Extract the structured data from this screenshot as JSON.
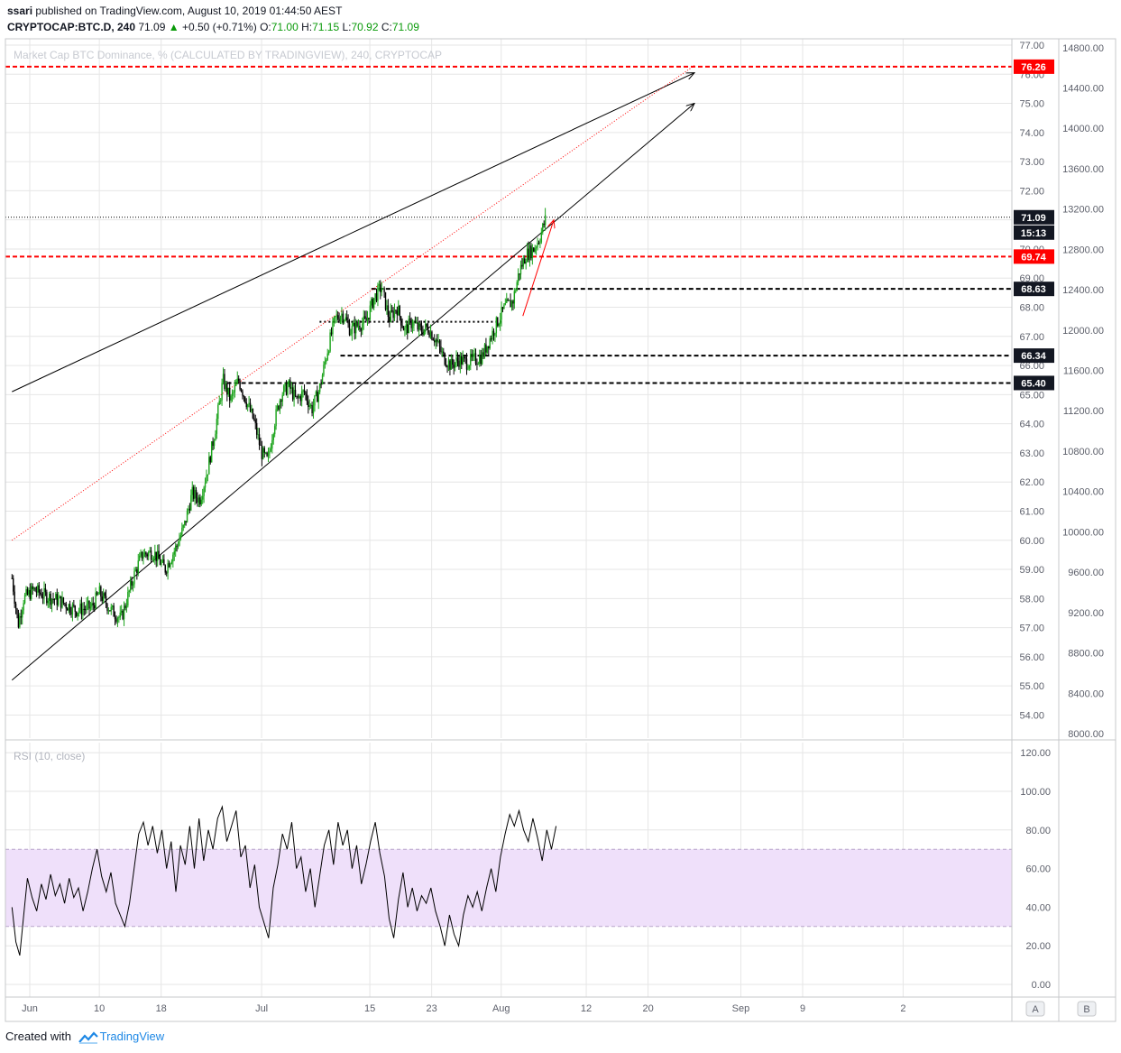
{
  "header": {
    "author": "ssari",
    "published_text": "published on TradingView.com, August 10, 2019 01:44:50 AEST",
    "symbol": "CRYPTOCAP:BTC.D, 240",
    "last": "71.09",
    "change": "+0.50 (+0.71%)",
    "o_label": "O:",
    "o_value": "71.00",
    "h_label": "H:",
    "h_value": "71.15",
    "l_label": "L:",
    "l_value": "70.92",
    "c_label": "C:",
    "c_value": "71.09"
  },
  "watermark": "Market Cap BTC Dominance, % (CALCULATED BY TRADINGVIEW), 240, CRYPTOCAP",
  "rsi_label": "RSI (10, close)",
  "footer": {
    "created_with": "Created with",
    "brand": "TradingView"
  },
  "colors": {
    "up_candle": "#1ba31b",
    "down_candle": "#000000",
    "red_level": "#ff0000",
    "rsi_band": "#efe0fa",
    "rsi_line": "#000000",
    "grid": "#e6e6e6",
    "trendline": "#000000"
  },
  "chart_data": [
    {
      "type": "candlestick",
      "title": "",
      "xlabel": "",
      "ylabel": "",
      "ylim": [
        53.5,
        77
      ],
      "y_ticks": [
        "54.00",
        "55.00",
        "56.00",
        "57.00",
        "58.00",
        "59.00",
        "60.00",
        "61.00",
        "62.00",
        "63.00",
        "64.00",
        "65.00",
        "66.00",
        "67.00",
        "68.00",
        "69.00",
        "70.00",
        "71.00",
        "72.00",
        "73.00",
        "74.00",
        "75.00",
        "76.00",
        "77.00"
      ],
      "secondary_y_ticks": [
        "8000.00",
        "8400.00",
        "8800.00",
        "9200.00",
        "9600.00",
        "10000.00",
        "10400.00",
        "10800.00",
        "11200.00",
        "11600.00",
        "12000.00",
        "12400.00",
        "12800.00",
        "13200.00",
        "13600.00",
        "14000.00",
        "14400.00",
        "14800.00"
      ],
      "x_ticks": [
        {
          "label": "Jun",
          "day": 0
        },
        {
          "label": "10",
          "day": 9
        },
        {
          "label": "18",
          "day": 17
        },
        {
          "label": "Jul",
          "day": 30
        },
        {
          "label": "15",
          "day": 44
        },
        {
          "label": "23",
          "day": 52
        },
        {
          "label": "Aug",
          "day": 61
        },
        {
          "label": "12",
          "day": 72
        },
        {
          "label": "20",
          "day": 80
        },
        {
          "label": "Sep",
          "day": 92
        },
        {
          "label": "9",
          "day": 100
        },
        {
          "label": "2",
          "day": 113
        }
      ],
      "grid": true,
      "price_path": [
        {
          "day": -2.3,
          "close": 58.7
        },
        {
          "day": -1.5,
          "close": 57.1
        },
        {
          "day": -0.8,
          "close": 58.0
        },
        {
          "day": 0.5,
          "close": 58.3
        },
        {
          "day": 2,
          "close": 58.1
        },
        {
          "day": 4,
          "close": 57.9
        },
        {
          "day": 6,
          "close": 57.6
        },
        {
          "day": 8,
          "close": 57.7
        },
        {
          "day": 9,
          "close": 58.2
        },
        {
          "day": 10.5,
          "close": 57.6
        },
        {
          "day": 11.8,
          "close": 57.3
        },
        {
          "day": 12.5,
          "close": 57.9
        },
        {
          "day": 13.5,
          "close": 58.8
        },
        {
          "day": 14.5,
          "close": 59.5
        },
        {
          "day": 16,
          "close": 59.6
        },
        {
          "day": 17.5,
          "close": 59.0
        },
        {
          "day": 19,
          "close": 59.8
        },
        {
          "day": 20,
          "close": 60.5
        },
        {
          "day": 21,
          "close": 61.6
        },
        {
          "day": 22,
          "close": 61.4
        },
        {
          "day": 23,
          "close": 62.4
        },
        {
          "day": 24,
          "close": 63.8
        },
        {
          "day": 25,
          "close": 65.5
        },
        {
          "day": 26,
          "close": 64.8
        },
        {
          "day": 27,
          "close": 65.5
        },
        {
          "day": 28,
          "close": 64.8
        },
        {
          "day": 29,
          "close": 64.1
        },
        {
          "day": 30,
          "close": 63.0
        },
        {
          "day": 30.8,
          "close": 62.7
        },
        {
          "day": 31.6,
          "close": 64.0
        },
        {
          "day": 32.5,
          "close": 65.0
        },
        {
          "day": 33.5,
          "close": 65.3
        },
        {
          "day": 34.5,
          "close": 64.8
        },
        {
          "day": 35.5,
          "close": 65.1
        },
        {
          "day": 36.5,
          "close": 64.5
        },
        {
          "day": 37.5,
          "close": 65.2
        },
        {
          "day": 38.5,
          "close": 66.5
        },
        {
          "day": 39.5,
          "close": 67.6
        },
        {
          "day": 40.5,
          "close": 67.8
        },
        {
          "day": 41.5,
          "close": 67.2
        },
        {
          "day": 42.5,
          "close": 67.4
        },
        {
          "day": 43.5,
          "close": 67.5
        },
        {
          "day": 44.5,
          "close": 68.3
        },
        {
          "day": 45.5,
          "close": 68.7
        },
        {
          "day": 46.5,
          "close": 67.6
        },
        {
          "day": 47.5,
          "close": 68.0
        },
        {
          "day": 48.5,
          "close": 67.2
        },
        {
          "day": 49.5,
          "close": 67.5
        },
        {
          "day": 50.5,
          "close": 67.2
        },
        {
          "day": 51.5,
          "close": 67.3
        },
        {
          "day": 52.5,
          "close": 66.9
        },
        {
          "day": 53.5,
          "close": 66.3
        },
        {
          "day": 54.5,
          "close": 66.0
        },
        {
          "day": 55.5,
          "close": 66.2
        },
        {
          "day": 56.5,
          "close": 66.1
        },
        {
          "day": 57.5,
          "close": 66.2
        },
        {
          "day": 58.5,
          "close": 66.3
        },
        {
          "day": 59.5,
          "close": 66.9
        },
        {
          "day": 60.5,
          "close": 67.5
        },
        {
          "day": 61.5,
          "close": 68.0
        },
        {
          "day": 62.5,
          "close": 68.2
        },
        {
          "day": 63.3,
          "close": 69.2
        },
        {
          "day": 64.2,
          "close": 69.8
        },
        {
          "day": 65.2,
          "close": 70.0
        },
        {
          "day": 66,
          "close": 70.4
        },
        {
          "day": 66.8,
          "close": 71.09
        }
      ],
      "horizontal_levels": [
        {
          "value": 76.26,
          "label": "76.26",
          "style": "red-dashed"
        },
        {
          "value": 71.09,
          "label": "71.09",
          "style": "black-dotted-last-price",
          "countdown": "15:13"
        },
        {
          "value": 69.74,
          "label": "69.74",
          "style": "red-dashed"
        },
        {
          "value": 68.63,
          "label": "68.63",
          "style": "black-dashed"
        },
        {
          "value": 67.5,
          "label": "",
          "style": "black-dotted"
        },
        {
          "value": 66.34,
          "label": "66.34",
          "style": "black-dashed"
        },
        {
          "value": 65.4,
          "label": "65.40",
          "style": "black-dashed"
        }
      ],
      "trendlines": [
        {
          "from": {
            "day": -2.3,
            "value": 65.1
          },
          "to": {
            "day": 86,
            "value": 76.05
          },
          "color": "black",
          "arrow": true
        },
        {
          "from": {
            "day": -2.3,
            "value": 55.2
          },
          "to": {
            "day": 86,
            "value": 75.0
          },
          "color": "black",
          "arrow": true
        },
        {
          "from": {
            "day": -2.3,
            "value": 60.0
          },
          "to": {
            "day": 86,
            "value": 76.3
          },
          "color": "red",
          "style": "dotted"
        },
        {
          "from": {
            "day": 63.8,
            "value": 67.7
          },
          "to": {
            "day": 67.8,
            "value": 71.0
          },
          "color": "red",
          "arrow": true
        }
      ]
    },
    {
      "type": "line",
      "title": "",
      "name": "RSI (10, close)",
      "ylim": [
        -5,
        125
      ],
      "y_ticks": [
        "0.00",
        "20.00",
        "40.00",
        "60.00",
        "80.00",
        "100.00",
        "120.00"
      ],
      "band": [
        30,
        70
      ],
      "series": [
        {
          "values": [
            [
              -2.3,
              40
            ],
            [
              -1.8,
              22
            ],
            [
              -1.3,
              15
            ],
            [
              -0.8,
              35
            ],
            [
              -0.3,
              55
            ],
            [
              0.3,
              45
            ],
            [
              0.9,
              38
            ],
            [
              1.5,
              52
            ],
            [
              2.1,
              44
            ],
            [
              2.7,
              57
            ],
            [
              3.3,
              46
            ],
            [
              3.9,
              52
            ],
            [
              4.5,
              42
            ],
            [
              5.1,
              55
            ],
            [
              5.7,
              45
            ],
            [
              6.3,
              50
            ],
            [
              6.9,
              38
            ],
            [
              7.5,
              48
            ],
            [
              8.1,
              60
            ],
            [
              8.7,
              70
            ],
            [
              9.3,
              56
            ],
            [
              9.9,
              48
            ],
            [
              10.5,
              58
            ],
            [
              11.1,
              42
            ],
            [
              11.7,
              36
            ],
            [
              12.3,
              30
            ],
            [
              12.9,
              42
            ],
            [
              13.5,
              60
            ],
            [
              14.1,
              78
            ],
            [
              14.7,
              84
            ],
            [
              15.3,
              72
            ],
            [
              15.9,
              82
            ],
            [
              16.5,
              68
            ],
            [
              17.1,
              80
            ],
            [
              17.7,
              60
            ],
            [
              18.3,
              74
            ],
            [
              18.9,
              48
            ],
            [
              19.5,
              72
            ],
            [
              20.1,
              62
            ],
            [
              20.7,
              82
            ],
            [
              21.3,
              60
            ],
            [
              21.9,
              86
            ],
            [
              22.5,
              64
            ],
            [
              23.1,
              80
            ],
            [
              23.7,
              70
            ],
            [
              24.3,
              86
            ],
            [
              24.9,
              92
            ],
            [
              25.5,
              74
            ],
            [
              26.1,
              82
            ],
            [
              26.7,
              90
            ],
            [
              27.3,
              66
            ],
            [
              27.9,
              72
            ],
            [
              28.5,
              50
            ],
            [
              29.1,
              62
            ],
            [
              29.7,
              40
            ],
            [
              30.3,
              32
            ],
            [
              30.9,
              24
            ],
            [
              31.5,
              50
            ],
            [
              32.1,
              62
            ],
            [
              32.7,
              78
            ],
            [
              33.3,
              70
            ],
            [
              33.9,
              84
            ],
            [
              34.5,
              60
            ],
            [
              35.1,
              66
            ],
            [
              35.7,
              48
            ],
            [
              36.3,
              60
            ],
            [
              36.9,
              40
            ],
            [
              37.5,
              56
            ],
            [
              38.1,
              72
            ],
            [
              38.7,
              80
            ],
            [
              39.3,
              62
            ],
            [
              39.9,
              84
            ],
            [
              40.5,
              72
            ],
            [
              41.1,
              80
            ],
            [
              41.7,
              60
            ],
            [
              42.3,
              72
            ],
            [
              42.9,
              52
            ],
            [
              43.5,
              62
            ],
            [
              44.1,
              74
            ],
            [
              44.7,
              84
            ],
            [
              45.3,
              68
            ],
            [
              45.9,
              56
            ],
            [
              46.5,
              34
            ],
            [
              47.1,
              24
            ],
            [
              47.7,
              44
            ],
            [
              48.3,
              58
            ],
            [
              48.9,
              40
            ],
            [
              49.5,
              50
            ],
            [
              50.1,
              38
            ],
            [
              50.7,
              46
            ],
            [
              51.3,
              42
            ],
            [
              51.9,
              50
            ],
            [
              52.5,
              38
            ],
            [
              53.1,
              30
            ],
            [
              53.7,
              20
            ],
            [
              54.3,
              36
            ],
            [
              54.9,
              26
            ],
            [
              55.5,
              20
            ],
            [
              56.1,
              36
            ],
            [
              56.7,
              46
            ],
            [
              57.3,
              40
            ],
            [
              57.9,
              48
            ],
            [
              58.5,
              38
            ],
            [
              59.1,
              50
            ],
            [
              59.7,
              60
            ],
            [
              60.3,
              48
            ],
            [
              60.9,
              66
            ],
            [
              61.5,
              78
            ],
            [
              62.1,
              88
            ],
            [
              62.7,
              82
            ],
            [
              63.3,
              90
            ],
            [
              63.9,
              80
            ],
            [
              64.5,
              74
            ],
            [
              65.1,
              86
            ],
            [
              65.7,
              76
            ],
            [
              66.3,
              64
            ],
            [
              66.9,
              80
            ],
            [
              67.5,
              70
            ],
            [
              68.1,
              82
            ]
          ]
        }
      ]
    }
  ]
}
